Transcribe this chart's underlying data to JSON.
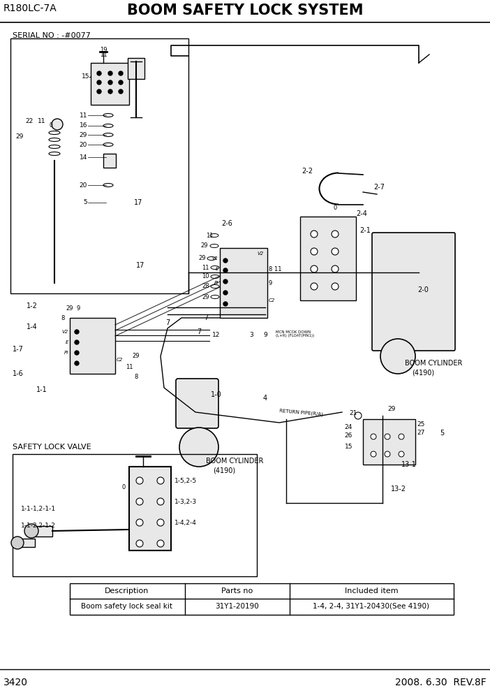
{
  "page_title_left": "R180LC-7A",
  "page_title_right": "BOOM SAFETY LOCK SYSTEM",
  "page_number": "3420",
  "page_date": "2008. 6.30  REV.8F",
  "serial_no": "SERIAL NO : -#0077",
  "safety_lock_label": "SAFETY LOCK VALVE",
  "boom_cyl_label1": "BOOM CYLINDER",
  "boom_cyl_label2": "(4190)",
  "table_headers": [
    "Description",
    "Parts no",
    "Included item"
  ],
  "table_row": [
    "Boom safety lock seal kit",
    "31Y1-20190",
    "1-4, 2-4, 31Y1-20430(See 4190)"
  ],
  "bg_color": "#ffffff",
  "line_color": "#000000",
  "gray_fill": "#d0d0d0",
  "light_gray": "#e8e8e8"
}
